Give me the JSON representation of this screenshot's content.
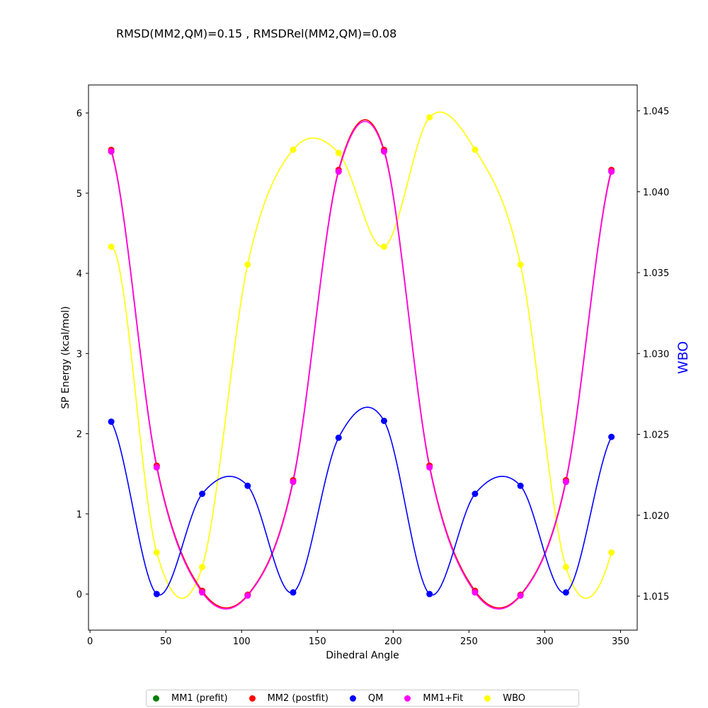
{
  "chart_data": {
    "type": "line",
    "title": "RMSD(MM2,QM)=0.15 , RMSDRel(MM2,QM)=0.08",
    "xlabel": "Dihedral Angle",
    "ylabel": "SP Energy (kcal/mol)",
    "y2label": "WBO",
    "xlim": [
      -1,
      361
    ],
    "ylim": [
      -0.45,
      6.35
    ],
    "y2lim": [
      1.0129,
      1.0466
    ],
    "xticks": [
      0,
      50,
      100,
      150,
      200,
      250,
      300,
      350
    ],
    "yticks": [
      0,
      1,
      2,
      3,
      4,
      5,
      6
    ],
    "y2ticks": [
      "1.015",
      "1.020",
      "1.025",
      "1.030",
      "1.035",
      "1.040",
      "1.045"
    ],
    "grid": false,
    "legend_position": "bottom-center",
    "x": [
      14,
      44,
      74,
      104,
      134,
      164,
      194,
      224,
      254,
      284,
      314,
      344
    ],
    "series": [
      {
        "name": "MM1 (prefit)",
        "color": "#008000",
        "axis": "left",
        "line": false,
        "values": [
          5.52,
          1.6,
          0.03,
          -0.01,
          1.4,
          5.27,
          5.52,
          1.6,
          0.03,
          -0.01,
          1.4,
          5.27
        ]
      },
      {
        "name": "MM2 (postfit)",
        "color": "#ff0000",
        "axis": "left",
        "line": true,
        "values": [
          5.54,
          1.6,
          0.04,
          -0.01,
          1.42,
          5.29,
          5.54,
          1.6,
          0.04,
          -0.01,
          1.42,
          5.29
        ]
      },
      {
        "name": "QM",
        "color": "#0000ff",
        "axis": "left",
        "line": true,
        "values": [
          2.15,
          0.0,
          1.25,
          1.35,
          0.02,
          1.95,
          2.16,
          0.0,
          1.25,
          1.35,
          0.02,
          1.96
        ]
      },
      {
        "name": "MM1+Fit",
        "color": "#ff00ff",
        "axis": "left",
        "line": true,
        "values": [
          5.52,
          1.58,
          0.02,
          -0.02,
          1.4,
          5.27,
          5.52,
          1.58,
          0.02,
          -0.02,
          1.4,
          5.27
        ]
      },
      {
        "name": "WBO",
        "color": "#ffff00",
        "axis": "right",
        "line": true,
        "values": [
          1.0366,
          1.0177,
          1.0168,
          1.0355,
          1.0426,
          1.0424,
          1.0366,
          1.0446,
          1.0426,
          1.0355,
          1.0168,
          1.0177
        ]
      }
    ]
  }
}
